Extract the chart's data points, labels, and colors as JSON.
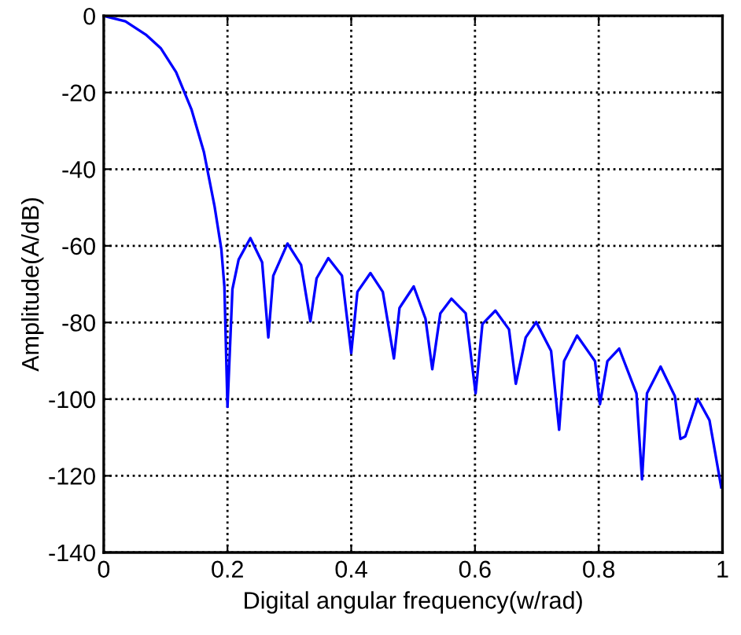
{
  "chart_data": {
    "type": "line",
    "xlabel": "Digital angular frequency(w/rad)",
    "ylabel": "Amplitude(A/dB)",
    "xlim": [
      0,
      1
    ],
    "ylim": [
      -140,
      0
    ],
    "xticks": [
      0,
      0.2,
      0.4,
      0.6,
      0.8,
      1
    ],
    "yticks": [
      -140,
      -120,
      -100,
      -80,
      -60,
      -40,
      -20,
      0
    ],
    "grid": true,
    "marker": "none",
    "line_style": "solid",
    "series": [
      {
        "color": "#0000ff",
        "x": [
          0,
          0.035,
          0.068,
          0.092,
          0.117,
          0.142,
          0.162,
          0.179,
          0.19,
          0.195,
          0.2,
          0.208,
          0.218,
          0.237,
          0.256,
          0.266,
          0.274,
          0.297,
          0.319,
          0.334,
          0.344,
          0.363,
          0.385,
          0.4,
          0.41,
          0.431,
          0.451,
          0.469,
          0.478,
          0.501,
          0.52,
          0.531,
          0.544,
          0.562,
          0.585,
          0.601,
          0.612,
          0.633,
          0.655,
          0.666,
          0.682,
          0.699,
          0.723,
          0.736,
          0.744,
          0.765,
          0.794,
          0.802,
          0.814,
          0.833,
          0.861,
          0.87,
          0.878,
          0.9,
          0.923,
          0.932,
          0.94,
          0.96,
          0.979,
          0.998
        ],
        "values": [
          0,
          -1.4,
          -4.9,
          -8.4,
          -14.7,
          -24.5,
          -35.6,
          -49.6,
          -60.8,
          -70.6,
          -102,
          -71.3,
          -63.6,
          -58,
          -64.3,
          -83.9,
          -67.8,
          -59.4,
          -65,
          -79.7,
          -68.5,
          -63.2,
          -67.8,
          -88,
          -72,
          -67.1,
          -72,
          -89.4,
          -76.2,
          -70.6,
          -79,
          -92.2,
          -77.6,
          -73.8,
          -77.6,
          -98.5,
          -80.4,
          -76.9,
          -81.8,
          -96,
          -83.9,
          -79.9,
          -87.4,
          -108,
          -90.1,
          -83.4,
          -90.1,
          -101.3,
          -90.1,
          -86.8,
          -98.5,
          -120.9,
          -98.5,
          -91.5,
          -99.2,
          -110.4,
          -109.7,
          -99.9,
          -105.5,
          -123
        ]
      }
    ]
  }
}
